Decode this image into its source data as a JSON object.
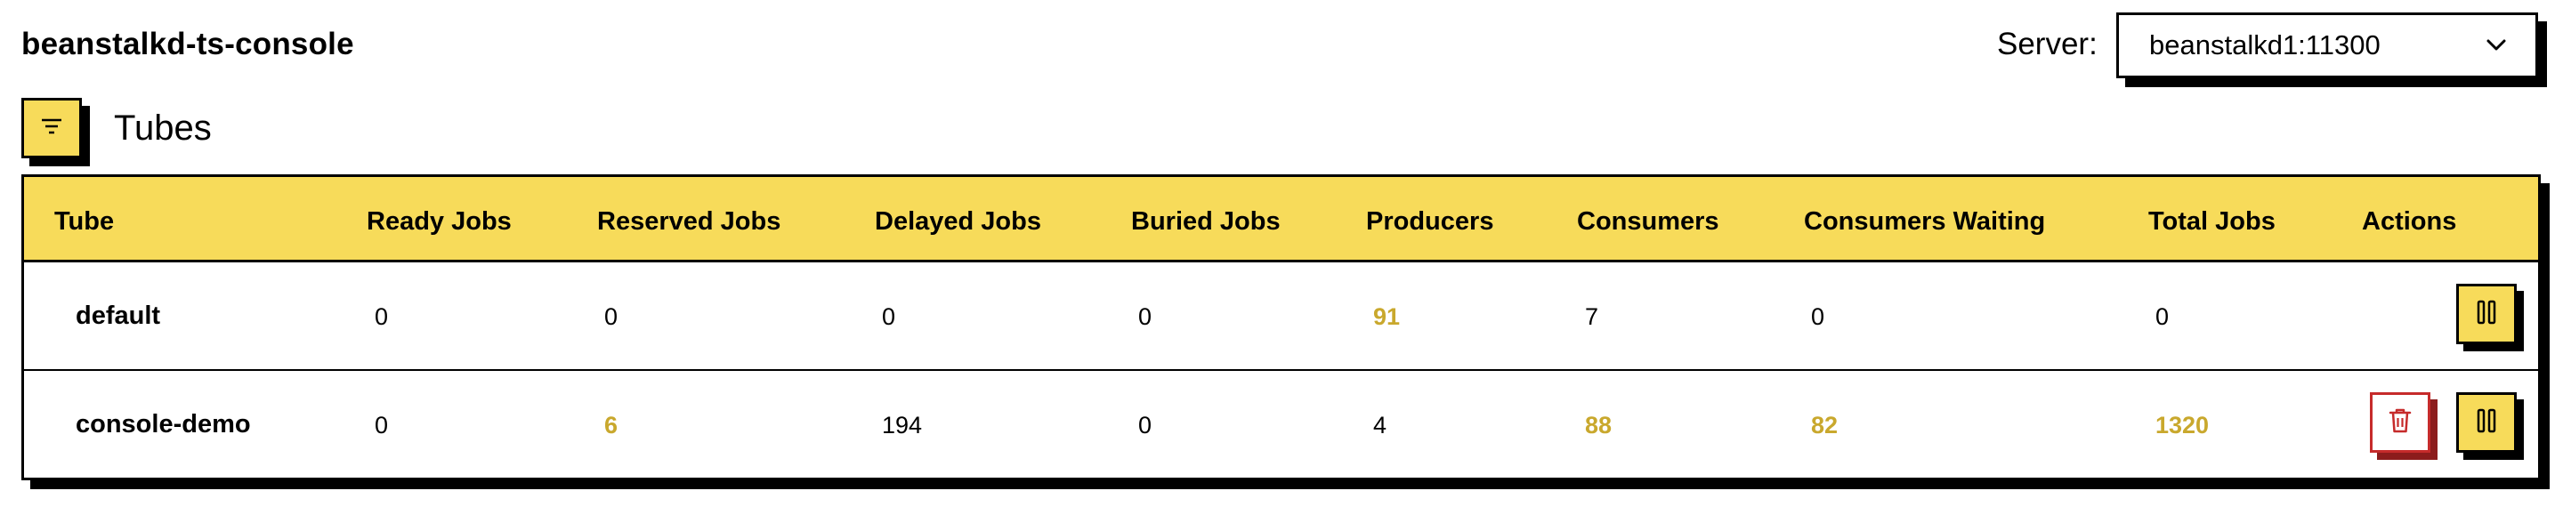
{
  "app": {
    "title": "beanstalkd-ts-console"
  },
  "server": {
    "label": "Server:",
    "selected": "beanstalkd1:11300"
  },
  "section": {
    "title": "Tubes"
  },
  "table": {
    "headers": [
      "Tube",
      "Ready Jobs",
      "Reserved Jobs",
      "Delayed Jobs",
      "Buried Jobs",
      "Producers",
      "Consumers",
      "Consumers Waiting",
      "Total Jobs",
      "Actions"
    ],
    "rows": [
      {
        "tube": "default",
        "ready": "0",
        "reserved": "0",
        "delayed": "0",
        "buried": "0",
        "producers": "91",
        "consumers": "7",
        "waiting": "0",
        "total": "0"
      },
      {
        "tube": "console-demo",
        "ready": "0",
        "reserved": "6",
        "delayed": "194",
        "buried": "0",
        "producers": "4",
        "consumers": "88",
        "waiting": "82",
        "total": "1320"
      }
    ]
  },
  "colors": {
    "accent": "#f7db5a",
    "highlight": "#c9a82d",
    "danger": "#c62b2b"
  },
  "icons": {
    "filter": "filter-icon",
    "pause": "pause-icon",
    "delete": "trash-icon",
    "chevron": "chevron-down-icon"
  }
}
